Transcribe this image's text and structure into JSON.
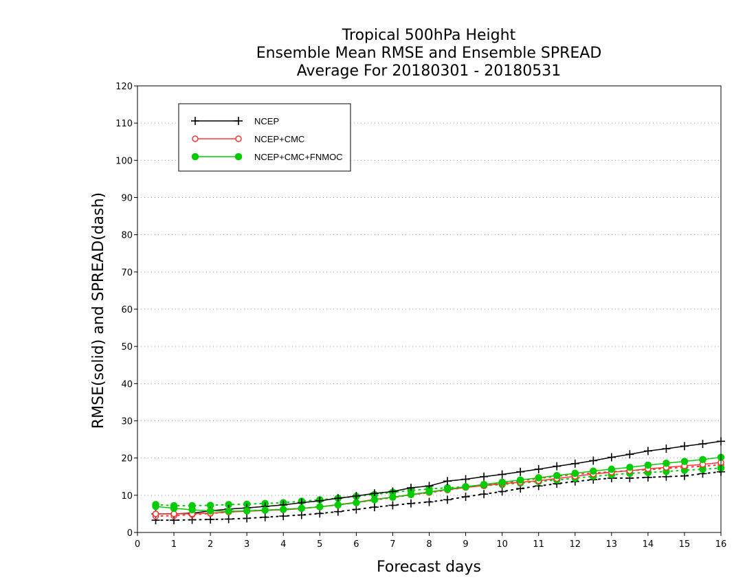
{
  "chart_data": {
    "type": "line",
    "title": [
      "Tropical 500hPa Height",
      "Ensemble Mean RMSE and Ensemble SPREAD",
      "Average For 20180301 - 20180531"
    ],
    "xlabel": "Forecast days",
    "ylabel": "RMSE(solid) and SPREAD(dash)",
    "xlim": [
      0,
      16
    ],
    "ylim": [
      0,
      120
    ],
    "xticks": [
      0,
      1,
      2,
      3,
      4,
      5,
      6,
      7,
      8,
      9,
      10,
      11,
      12,
      13,
      14,
      15,
      16
    ],
    "yticks": [
      0,
      10,
      20,
      30,
      40,
      50,
      60,
      70,
      80,
      90,
      100,
      110,
      120
    ],
    "grid": "horizontal dotted",
    "legend_position": "top-left",
    "x": [
      0.5,
      1,
      1.5,
      2,
      2.5,
      3,
      3.5,
      4,
      4.5,
      5,
      5.5,
      6,
      6.5,
      7,
      7.5,
      8,
      8.5,
      9,
      9.5,
      10,
      10.5,
      11,
      11.5,
      12,
      12.5,
      13,
      13.5,
      14,
      14.5,
      15,
      15.5,
      16
    ],
    "series": [
      {
        "name": "NCEP",
        "color": "#000000",
        "marker": "plus",
        "rmse": [
          5.0,
          5.0,
          5.2,
          5.8,
          6.3,
          6.6,
          7.0,
          7.4,
          8.0,
          8.5,
          9.2,
          9.8,
          10.5,
          11.0,
          12.0,
          12.5,
          13.8,
          14.3,
          15.0,
          15.6,
          16.3,
          17.0,
          17.8,
          18.5,
          19.3,
          20.2,
          21.0,
          21.9,
          22.5,
          23.2,
          23.8,
          24.5
        ],
        "spread": [
          3.3,
          3.3,
          3.4,
          3.5,
          3.6,
          3.8,
          4.1,
          4.4,
          4.7,
          5.1,
          5.6,
          6.2,
          6.8,
          7.3,
          7.8,
          8.2,
          8.8,
          9.6,
          10.3,
          11.0,
          11.8,
          12.5,
          13.1,
          13.7,
          14.2,
          14.6,
          14.6,
          14.8,
          15.0,
          15.2,
          15.8,
          16.3
        ]
      },
      {
        "name": "NCEP+CMC",
        "color": "#ff3333",
        "marker": "open-circle",
        "rmse": [
          5.0,
          5.0,
          5.0,
          5.2,
          5.5,
          5.7,
          5.9,
          6.1,
          6.4,
          6.9,
          7.5,
          8.1,
          8.9,
          9.5,
          10.1,
          10.8,
          11.5,
          12.1,
          12.6,
          13.1,
          13.5,
          13.9,
          14.5,
          15.1,
          15.7,
          16.2,
          16.6,
          17.1,
          17.5,
          17.9,
          18.3,
          18.8
        ],
        "spread": [
          4.4,
          4.5,
          4.8,
          5.1,
          5.5,
          5.8,
          6.0,
          6.2,
          6.5,
          6.9,
          7.4,
          8.0,
          8.7,
          9.4,
          10.1,
          10.7,
          11.4,
          12.1,
          12.7,
          13.3,
          13.9,
          14.5,
          15.1,
          15.6,
          16.0,
          16.3,
          16.6,
          16.9,
          17.2,
          17.5,
          17.8,
          18.2
        ]
      },
      {
        "name": "NCEP+CMC+FNMOC",
        "color": "#00cc00",
        "marker": "filled-circle",
        "rmse": [
          7.0,
          6.5,
          6.1,
          5.8,
          5.7,
          5.8,
          6.0,
          6.2,
          6.5,
          6.9,
          7.4,
          8.0,
          8.8,
          9.5,
          10.2,
          10.9,
          11.6,
          12.3,
          12.9,
          13.5,
          14.1,
          14.7,
          15.3,
          15.9,
          16.5,
          17.0,
          17.5,
          18.1,
          18.6,
          19.1,
          19.6,
          20.2
        ],
        "spread": [
          7.5,
          7.2,
          7.2,
          7.3,
          7.5,
          7.6,
          7.8,
          8.0,
          8.4,
          8.8,
          9.2,
          9.7,
          10.2,
          10.8,
          11.3,
          11.7,
          12.0,
          12.3,
          12.6,
          12.9,
          13.3,
          13.7,
          14.1,
          14.6,
          15.1,
          15.5,
          15.9,
          16.1,
          16.4,
          16.7,
          17.0,
          17.3
        ]
      }
    ]
  }
}
